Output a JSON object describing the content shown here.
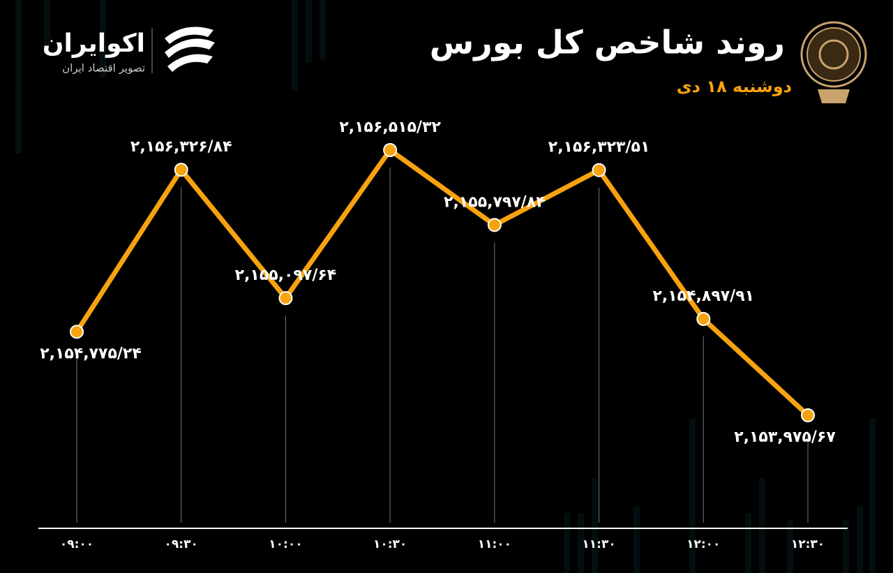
{
  "brand": {
    "name": "اکوایران",
    "tagline": "تصویر اقتصاد ایران"
  },
  "chart_data": {
    "type": "line",
    "title": "روند شاخص کل بورس",
    "subtitle": "دوشنبه ۱۸ دی",
    "categories": [
      "۰۹:۰۰",
      "۰۹:۳۰",
      "۱۰:۰۰",
      "۱۰:۳۰",
      "۱۱:۰۰",
      "۱۱:۳۰",
      "۱۲:۰۰",
      "۱۲:۳۰"
    ],
    "values": [
      2154775.24,
      2156326.84,
      2155097.64,
      2156515.32,
      2155797.84,
      2156323.51,
      2154897.91,
      2153975.67
    ],
    "value_labels": [
      "۲,۱۵۴,۷۷۵/۲۴",
      "۲,۱۵۶,۳۲۶/۸۴",
      "۲,۱۵۵,۰۹۷/۶۴",
      "۲,۱۵۶,۵۱۵/۳۲",
      "۲,۱۵۵,۷۹۷/۸۴",
      "۲,۱۵۶,۳۲۳/۵۱",
      "۲,۱۵۴,۸۹۷/۹۱",
      "۲,۱۵۳,۹۷۵/۶۷"
    ],
    "color": "#f7a20f"
  }
}
